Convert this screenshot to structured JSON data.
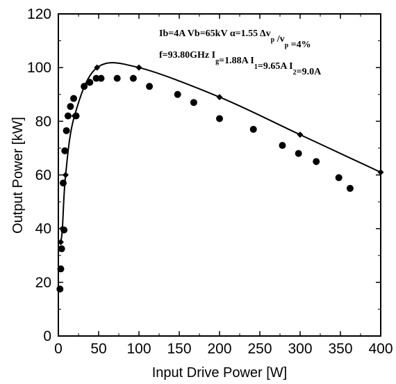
{
  "chart_data": {
    "type": "scatter",
    "xlabel": "Input Drive Power [W]",
    "ylabel": "Output Power [kW]",
    "xlim": [
      0,
      400
    ],
    "ylim": [
      0,
      120
    ],
    "x_ticks": [
      "0",
      "50",
      "100",
      "150",
      "200",
      "250",
      "300",
      "350",
      "400"
    ],
    "y_ticks": [
      "0",
      "20",
      "40",
      "60",
      "80",
      "100",
      "120"
    ],
    "grid": false,
    "annotations": [
      {
        "parts": [
          {
            "t": "Ib=4A Vb=65kV α=1.55 Δv"
          },
          {
            "t": "p",
            "sub": true
          },
          {
            "t": " /v"
          },
          {
            "t": "p",
            "sub": true
          },
          {
            "t": " =4%"
          }
        ]
      },
      {
        "parts": [
          {
            "t": "f=93.80GHz I"
          },
          {
            "t": "g",
            "sub": true
          },
          {
            "t": "=1.88A I"
          },
          {
            "t": "1",
            "sub": true
          },
          {
            "t": "=9.65A I"
          },
          {
            "t": "2",
            "sub": true
          },
          {
            "t": "=9.0A"
          }
        ]
      }
    ],
    "series": [
      {
        "marker": "circle",
        "color": "#000000",
        "points": [
          [
            2,
            17.5
          ],
          [
            3,
            25
          ],
          [
            4,
            32.5
          ],
          [
            6,
            57
          ],
          [
            7,
            39.5
          ],
          [
            8,
            69
          ],
          [
            10,
            76.5
          ],
          [
            12,
            82
          ],
          [
            15,
            85.5
          ],
          [
            19,
            88.5
          ],
          [
            22,
            82
          ],
          [
            32,
            93
          ],
          [
            39,
            94.5
          ],
          [
            47,
            96
          ],
          [
            53,
            96
          ],
          [
            73,
            96
          ],
          [
            93,
            96
          ],
          [
            113,
            93
          ],
          [
            148,
            90
          ],
          [
            168,
            87
          ],
          [
            200,
            81
          ],
          [
            242,
            77
          ],
          [
            278,
            71
          ],
          [
            298,
            68
          ],
          [
            320,
            65
          ],
          [
            348,
            59
          ],
          [
            362,
            55
          ]
        ]
      },
      {
        "marker": "diamond",
        "line": true,
        "color": "#000000",
        "points": [
          [
            3,
            35
          ],
          [
            5,
            40
          ],
          [
            9,
            60
          ],
          [
            20,
            82
          ],
          [
            48,
            100
          ],
          [
            100,
            100
          ],
          [
            200,
            89
          ],
          [
            300,
            75
          ],
          [
            400,
            61
          ]
        ]
      }
    ]
  }
}
